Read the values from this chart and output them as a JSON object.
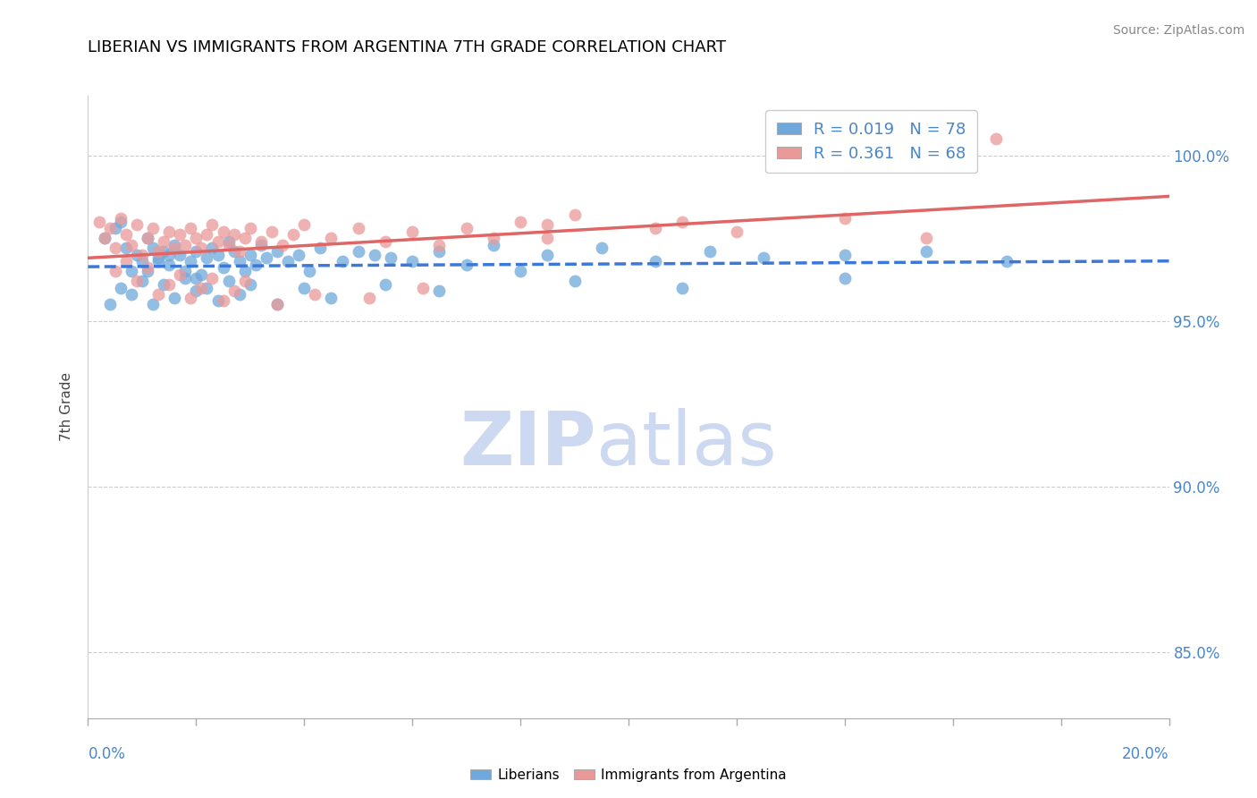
{
  "title": "LIBERIAN VS IMMIGRANTS FROM ARGENTINA 7TH GRADE CORRELATION CHART",
  "source_text": "Source: ZipAtlas.com",
  "ylabel": "7th Grade",
  "xlim": [
    0.0,
    20.0
  ],
  "ylim": [
    83.0,
    101.8
  ],
  "yticks": [
    85.0,
    90.0,
    95.0,
    100.0
  ],
  "ytick_labels": [
    "85.0%",
    "90.0%",
    "95.0%",
    "100.0%"
  ],
  "legend_r1": "0.019",
  "legend_n1": "78",
  "legend_r2": "0.361",
  "legend_n2": "68",
  "blue_color": "#6fa8dc",
  "pink_color": "#ea9999",
  "blue_line_color": "#3c78d8",
  "pink_line_color": "#e06666",
  "watermark_zip": "ZIP",
  "watermark_atlas": "atlas",
  "watermark_color": "#ccd9f0",
  "blue_scatter_x": [
    0.3,
    0.5,
    0.6,
    0.7,
    0.8,
    0.9,
    1.0,
    1.1,
    1.2,
    1.3,
    1.4,
    1.5,
    1.6,
    1.7,
    1.8,
    1.9,
    2.0,
    2.1,
    2.2,
    2.3,
    2.4,
    2.5,
    2.6,
    2.7,
    2.8,
    2.9,
    3.0,
    3.1,
    3.2,
    3.3,
    3.5,
    3.7,
    3.9,
    4.1,
    4.3,
    4.7,
    5.0,
    5.3,
    5.6,
    6.0,
    6.5,
    7.0,
    7.5,
    8.0,
    8.5,
    9.5,
    10.5,
    11.5,
    12.5,
    14.0,
    15.5,
    17.0,
    0.4,
    0.6,
    0.8,
    1.0,
    1.2,
    1.4,
    1.6,
    1.8,
    2.0,
    2.2,
    2.4,
    2.6,
    2.8,
    3.0,
    3.5,
    4.0,
    4.5,
    5.5,
    6.5,
    9.0,
    11.0,
    14.0,
    1.1,
    1.3,
    1.5,
    2.0
  ],
  "blue_scatter_y": [
    97.5,
    97.8,
    98.0,
    97.2,
    96.5,
    97.0,
    96.8,
    97.5,
    97.2,
    96.9,
    97.1,
    96.7,
    97.3,
    97.0,
    96.5,
    96.8,
    97.1,
    96.4,
    96.9,
    97.2,
    97.0,
    96.6,
    97.4,
    97.1,
    96.8,
    96.5,
    97.0,
    96.7,
    97.3,
    96.9,
    97.1,
    96.8,
    97.0,
    96.5,
    97.2,
    96.8,
    97.1,
    97.0,
    96.9,
    96.8,
    97.1,
    96.7,
    97.3,
    96.5,
    97.0,
    97.2,
    96.8,
    97.1,
    96.9,
    97.0,
    97.1,
    96.8,
    95.5,
    96.0,
    95.8,
    96.2,
    95.5,
    96.1,
    95.7,
    96.3,
    95.9,
    96.0,
    95.6,
    96.2,
    95.8,
    96.1,
    95.5,
    96.0,
    95.7,
    96.1,
    95.9,
    96.2,
    96.0,
    96.3,
    96.5,
    96.8,
    97.0,
    96.3
  ],
  "pink_scatter_x": [
    0.2,
    0.3,
    0.4,
    0.5,
    0.6,
    0.7,
    0.8,
    0.9,
    1.0,
    1.1,
    1.2,
    1.3,
    1.4,
    1.5,
    1.6,
    1.7,
    1.8,
    1.9,
    2.0,
    2.1,
    2.2,
    2.3,
    2.4,
    2.5,
    2.6,
    2.7,
    2.8,
    2.9,
    3.0,
    3.2,
    3.4,
    3.6,
    3.8,
    4.0,
    4.5,
    5.0,
    5.5,
    6.0,
    6.5,
    7.0,
    7.5,
    8.0,
    8.5,
    9.0,
    10.5,
    11.0,
    12.0,
    14.0,
    15.5,
    16.8,
    0.5,
    0.7,
    0.9,
    1.1,
    1.3,
    1.5,
    1.7,
    1.9,
    2.1,
    2.3,
    2.5,
    2.7,
    2.9,
    3.5,
    4.2,
    5.2,
    6.2,
    8.5
  ],
  "pink_scatter_y": [
    98.0,
    97.5,
    97.8,
    97.2,
    98.1,
    97.6,
    97.3,
    97.9,
    97.0,
    97.5,
    97.8,
    97.1,
    97.4,
    97.7,
    97.2,
    97.6,
    97.3,
    97.8,
    97.5,
    97.2,
    97.6,
    97.9,
    97.4,
    97.7,
    97.3,
    97.6,
    97.1,
    97.5,
    97.8,
    97.4,
    97.7,
    97.3,
    97.6,
    97.9,
    97.5,
    97.8,
    97.4,
    97.7,
    97.3,
    97.8,
    97.5,
    98.0,
    97.9,
    98.2,
    97.8,
    98.0,
    97.7,
    98.1,
    97.5,
    100.5,
    96.5,
    96.8,
    96.2,
    96.6,
    95.8,
    96.1,
    96.4,
    95.7,
    96.0,
    96.3,
    95.6,
    95.9,
    96.2,
    95.5,
    95.8,
    95.7,
    96.0,
    97.5
  ]
}
